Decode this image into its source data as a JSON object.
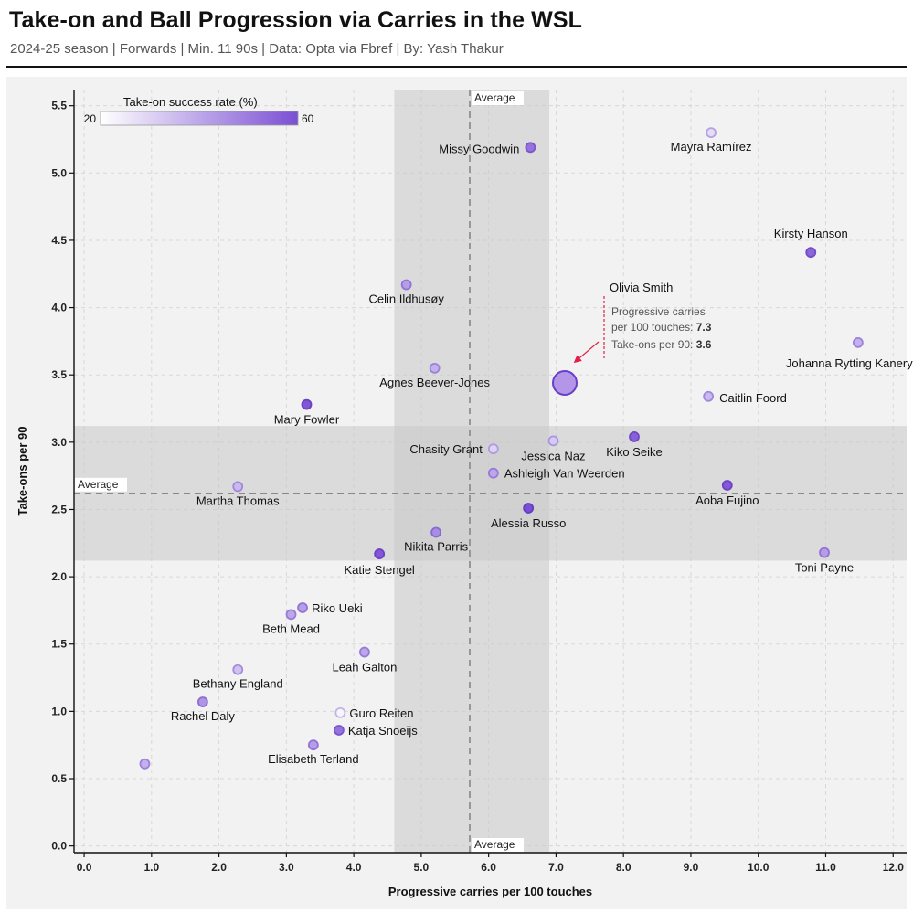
{
  "header": {
    "title": "Take-on and Ball Progression via Carries in the WSL",
    "subtitle": "2024-25 season | Forwards | Min. 11 90s | Data: Opta via Fbref | By: Yash Thakur"
  },
  "chart_data": {
    "type": "scatter",
    "xlabel": "Progressive carries per 100 touches",
    "ylabel": "Take-ons per 90",
    "xlim": [
      -0.15,
      12.2
    ],
    "ylim": [
      -0.05,
      5.62
    ],
    "xticks": [
      "0.0",
      "1.0",
      "2.0",
      "3.0",
      "4.0",
      "5.0",
      "6.0",
      "7.0",
      "8.0",
      "9.0",
      "10.0",
      "11.0",
      "12.0"
    ],
    "yticks": [
      "0.0",
      "0.5",
      "1.0",
      "1.5",
      "2.0",
      "2.5",
      "3.0",
      "3.5",
      "4.0",
      "4.5",
      "5.0",
      "5.5"
    ],
    "grid": true,
    "averages": {
      "x": 5.72,
      "y": 2.62,
      "x_band": [
        4.6,
        6.9
      ],
      "y_band": [
        2.12,
        3.12
      ],
      "label": "Average"
    },
    "color_scale": {
      "title": "Take-on success rate (%)",
      "min": 20,
      "max": 60,
      "min_label": "20",
      "max_label": "60",
      "low_color": "#ffffff",
      "high_color": "#7b4fd4"
    },
    "highlight": {
      "name": "Olivia Smith",
      "x": 7.3,
      "y": 3.6,
      "annotation_line1": "Progressive carries",
      "annotation_line2_prefix": "per 100 touches: ",
      "annotation_line2_value": "7.3",
      "annotation_line3_prefix": "Take-ons per 90: ",
      "annotation_line3_value": "3.6",
      "arrow_color": "#e0204a"
    },
    "points": [
      {
        "name": "Missy Goodwin",
        "x": 6.62,
        "y": 5.19,
        "rate": 52,
        "anchor": "end",
        "dx": -12,
        "dy": 6
      },
      {
        "name": "Mayra Ramírez",
        "x": 9.3,
        "y": 5.3,
        "rate": 28,
        "anchor": "middle",
        "dx": 0,
        "dy": 20
      },
      {
        "name": "Kirsty Hanson",
        "x": 10.78,
        "y": 4.41,
        "rate": 55,
        "anchor": "middle",
        "dx": 0,
        "dy": -16
      },
      {
        "name": "Celin Ildhusøy",
        "x": 4.78,
        "y": 4.17,
        "rate": 42,
        "anchor": "middle",
        "dx": 0,
        "dy": 20
      },
      {
        "name": "Johanna Rytting Kaneryd",
        "x": 11.48,
        "y": 3.74,
        "rate": 38,
        "anchor": "middle",
        "dx": -6,
        "dy": 27
      },
      {
        "name": "Agnes Beever-Jones",
        "x": 5.2,
        "y": 3.55,
        "rate": 38,
        "anchor": "middle",
        "dx": 0,
        "dy": 20
      },
      {
        "name": "Caitlin Foord",
        "x": 9.26,
        "y": 3.34,
        "rate": 36,
        "anchor": "start",
        "dx": 12,
        "dy": 6
      },
      {
        "name": "Mary Fowler",
        "x": 3.3,
        "y": 3.28,
        "rate": 58,
        "anchor": "middle",
        "dx": 0,
        "dy": 21
      },
      {
        "name": "Chasity Grant",
        "x": 6.07,
        "y": 2.95,
        "rate": 30,
        "anchor": "end",
        "dx": -12,
        "dy": 5
      },
      {
        "name": "Jessica Naz",
        "x": 6.96,
        "y": 3.01,
        "rate": 32,
        "anchor": "middle",
        "dx": 0,
        "dy": 21
      },
      {
        "name": "Kiko Seike",
        "x": 8.16,
        "y": 3.04,
        "rate": 56,
        "anchor": "middle",
        "dx": 0,
        "dy": 21
      },
      {
        "name": "Ashleigh Van Weerden",
        "x": 6.07,
        "y": 2.77,
        "rate": 40,
        "anchor": "start",
        "dx": 12,
        "dy": 5
      },
      {
        "name": "Martha Thomas",
        "x": 2.28,
        "y": 2.67,
        "rate": 36,
        "anchor": "middle",
        "dx": 0,
        "dy": 20
      },
      {
        "name": "Aoba Fujino",
        "x": 9.54,
        "y": 2.68,
        "rate": 58,
        "anchor": "middle",
        "dx": 0,
        "dy": 21
      },
      {
        "name": "Alessia Russo",
        "x": 6.59,
        "y": 2.51,
        "rate": 60,
        "anchor": "middle",
        "dx": 0,
        "dy": 21
      },
      {
        "name": "Nikita Parris",
        "x": 5.22,
        "y": 2.33,
        "rate": 46,
        "anchor": "middle",
        "dx": 0,
        "dy": 20
      },
      {
        "name": "Katie Stengel",
        "x": 4.38,
        "y": 2.17,
        "rate": 58,
        "anchor": "middle",
        "dx": 0,
        "dy": 22
      },
      {
        "name": "Toni Payne",
        "x": 10.98,
        "y": 2.18,
        "rate": 42,
        "anchor": "middle",
        "dx": 0,
        "dy": 21
      },
      {
        "name": "Riko Ueki",
        "x": 3.24,
        "y": 1.77,
        "rate": 42,
        "anchor": "start",
        "dx": 10,
        "dy": 5
      },
      {
        "name": "Beth Mead",
        "x": 3.07,
        "y": 1.72,
        "rate": 40,
        "anchor": "middle",
        "dx": 0,
        "dy": 20
      },
      {
        "name": "Leah Galton",
        "x": 4.16,
        "y": 1.44,
        "rate": 40,
        "anchor": "middle",
        "dx": 0,
        "dy": 21
      },
      {
        "name": "Bethany England",
        "x": 2.28,
        "y": 1.31,
        "rate": 34,
        "anchor": "middle",
        "dx": 0,
        "dy": 20
      },
      {
        "name": "Rachel Daly",
        "x": 1.76,
        "y": 1.07,
        "rate": 44,
        "anchor": "middle",
        "dx": 0,
        "dy": 20
      },
      {
        "name": "Guro Reiten",
        "x": 3.8,
        "y": 0.99,
        "rate": 22,
        "anchor": "start",
        "dx": 10,
        "dy": 5
      },
      {
        "name": "Katja Snoeijs",
        "x": 3.78,
        "y": 0.86,
        "rate": 52,
        "anchor": "start",
        "dx": 10,
        "dy": 5
      },
      {
        "name": "Elisabeth Terland",
        "x": 3.4,
        "y": 0.75,
        "rate": 42,
        "anchor": "middle",
        "dx": 0,
        "dy": 20
      },
      {
        "name": "",
        "x": 0.9,
        "y": 0.61,
        "rate": 38,
        "anchor": "middle",
        "dx": 0,
        "dy": 0
      }
    ]
  }
}
